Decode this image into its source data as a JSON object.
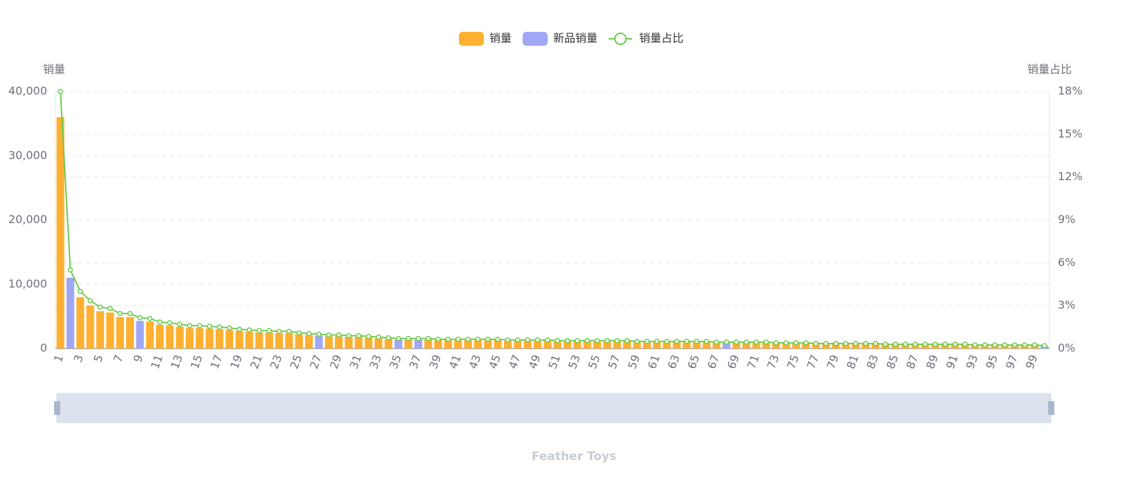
{
  "chart_data": {
    "type": "bar-line",
    "title": "Feather Toys",
    "y_label": "销量",
    "y2_label": "销量占比",
    "categories": [
      1,
      null,
      3,
      null,
      5,
      null,
      7,
      null,
      9,
      null,
      11,
      null,
      13,
      null,
      15,
      null,
      17,
      null,
      19,
      null,
      21,
      null,
      23,
      null,
      25,
      null,
      27,
      null,
      29,
      null,
      31,
      null,
      33,
      null,
      35,
      null,
      37,
      null,
      39,
      null,
      41,
      null,
      43,
      null,
      45,
      null,
      47,
      null,
      49,
      null,
      51,
      null,
      53,
      null,
      55,
      null,
      57,
      null,
      59,
      null,
      61,
      null,
      63,
      null,
      65,
      null,
      67,
      null,
      69,
      null,
      71,
      null,
      73,
      null,
      75,
      null,
      77,
      null,
      79,
      null,
      81,
      null,
      83,
      null,
      85,
      null,
      87,
      null,
      89,
      null,
      91,
      null,
      93,
      null,
      95,
      null,
      97,
      null,
      99,
      null
    ],
    "series": [
      {
        "name": "销量",
        "type": "bar",
        "color": "#ffb031",
        "values": [
          36000,
          null,
          8000,
          6700,
          5800,
          5600,
          4900,
          4900,
          null,
          4200,
          3700,
          3600,
          3400,
          3200,
          3200,
          3100,
          3000,
          2900,
          2700,
          2600,
          2500,
          2500,
          2400,
          2400,
          2200,
          2100,
          null,
          1900,
          1900,
          1800,
          1800,
          1700,
          1600,
          1500,
          null,
          1400,
          null,
          1400,
          1300,
          1300,
          1300,
          1300,
          1300,
          1300,
          1300,
          1200,
          1200,
          1200,
          1200,
          1200,
          1100,
          1100,
          1100,
          1100,
          1100,
          1100,
          1100,
          1100,
          1000,
          1000,
          1000,
          1000,
          1000,
          1000,
          1000,
          1000,
          900,
          null,
          900,
          900,
          900,
          900,
          800,
          800,
          800,
          800,
          700,
          700,
          700,
          700,
          700,
          700,
          700,
          600,
          600,
          600,
          600,
          600,
          600,
          600,
          600,
          600,
          500,
          500,
          500,
          500,
          500,
          500,
          500,
          null
        ]
      },
      {
        "name": "新品销量",
        "type": "bar",
        "color": "#a0a7f5",
        "values": [
          null,
          11000,
          null,
          null,
          null,
          null,
          null,
          null,
          4300,
          null,
          null,
          null,
          null,
          null,
          null,
          null,
          null,
          null,
          null,
          null,
          null,
          null,
          null,
          null,
          null,
          null,
          2000,
          null,
          null,
          null,
          null,
          null,
          null,
          null,
          1400,
          null,
          1400,
          null,
          null,
          null,
          null,
          null,
          null,
          null,
          null,
          null,
          null,
          null,
          null,
          null,
          null,
          null,
          null,
          null,
          null,
          null,
          null,
          null,
          null,
          null,
          null,
          null,
          null,
          null,
          null,
          null,
          null,
          900,
          null,
          null,
          null,
          null,
          null,
          null,
          null,
          null,
          null,
          null,
          null,
          null,
          null,
          null,
          null,
          null,
          null,
          null,
          null,
          null,
          null,
          null,
          null,
          null,
          null,
          null,
          null,
          null,
          null,
          null,
          null,
          400
        ]
      },
      {
        "name": "销量占比",
        "type": "line",
        "axis": "y2",
        "color": "#6ccb4f",
        "values": [
          18,
          5.5,
          4,
          3.35,
          2.9,
          2.8,
          2.45,
          2.45,
          2.15,
          2.1,
          1.85,
          1.8,
          1.7,
          1.6,
          1.6,
          1.55,
          1.5,
          1.45,
          1.35,
          1.3,
          1.25,
          1.25,
          1.2,
          1.2,
          1.1,
          1.05,
          1,
          0.95,
          0.95,
          0.9,
          0.9,
          0.85,
          0.8,
          0.75,
          0.7,
          0.7,
          0.7,
          0.7,
          0.65,
          0.65,
          0.65,
          0.65,
          0.65,
          0.65,
          0.65,
          0.6,
          0.6,
          0.6,
          0.6,
          0.6,
          0.55,
          0.55,
          0.55,
          0.55,
          0.55,
          0.55,
          0.55,
          0.55,
          0.5,
          0.5,
          0.5,
          0.5,
          0.5,
          0.5,
          0.5,
          0.5,
          0.45,
          0.45,
          0.45,
          0.45,
          0.45,
          0.45,
          0.4,
          0.4,
          0.4,
          0.4,
          0.35,
          0.35,
          0.35,
          0.35,
          0.35,
          0.35,
          0.35,
          0.3,
          0.3,
          0.3,
          0.3,
          0.3,
          0.3,
          0.3,
          0.3,
          0.3,
          0.25,
          0.25,
          0.25,
          0.25,
          0.25,
          0.25,
          0.25,
          0.2
        ]
      }
    ],
    "ylim": [
      0,
      40000
    ],
    "yticks": [
      0,
      {
        "value": 10000,
        "label": "10,000"
      },
      {
        "value": 20000,
        "label": "20,000"
      },
      {
        "value": 30000,
        "label": "30,000"
      },
      {
        "value": 40000,
        "label": "40,000"
      }
    ],
    "y2lim": [
      0,
      18
    ],
    "y2ticks": [
      {
        "value": 0,
        "label": "0%"
      },
      {
        "value": 3,
        "label": "3%"
      },
      {
        "value": 6,
        "label": "6%"
      },
      {
        "value": 9,
        "label": "9%"
      },
      {
        "value": 12,
        "label": "12%"
      },
      {
        "value": 15,
        "label": "15%"
      },
      {
        "value": 18,
        "label": "18%"
      }
    ],
    "grid": true,
    "legend": "top"
  }
}
